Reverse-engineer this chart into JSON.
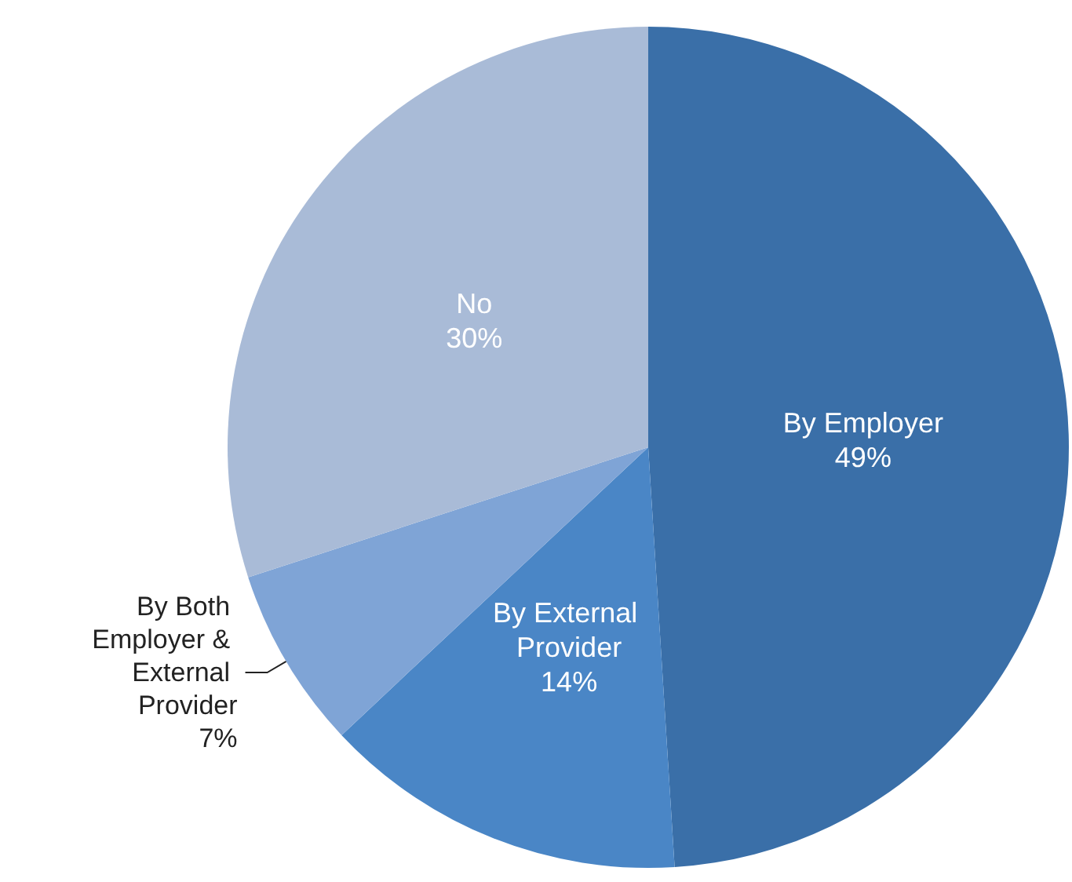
{
  "chart_data": {
    "type": "pie",
    "categories": [
      "By Employer",
      "By External Provider",
      "By Both Employer & External Provider",
      "No"
    ],
    "values": [
      49,
      14,
      7,
      30
    ],
    "colors": [
      "#3a6fa8",
      "#4a86c6",
      "#7fa4d6",
      "#a9bbd7"
    ],
    "value_labels": [
      "49%",
      "14%",
      "7%",
      "30%"
    ],
    "legend": false
  }
}
